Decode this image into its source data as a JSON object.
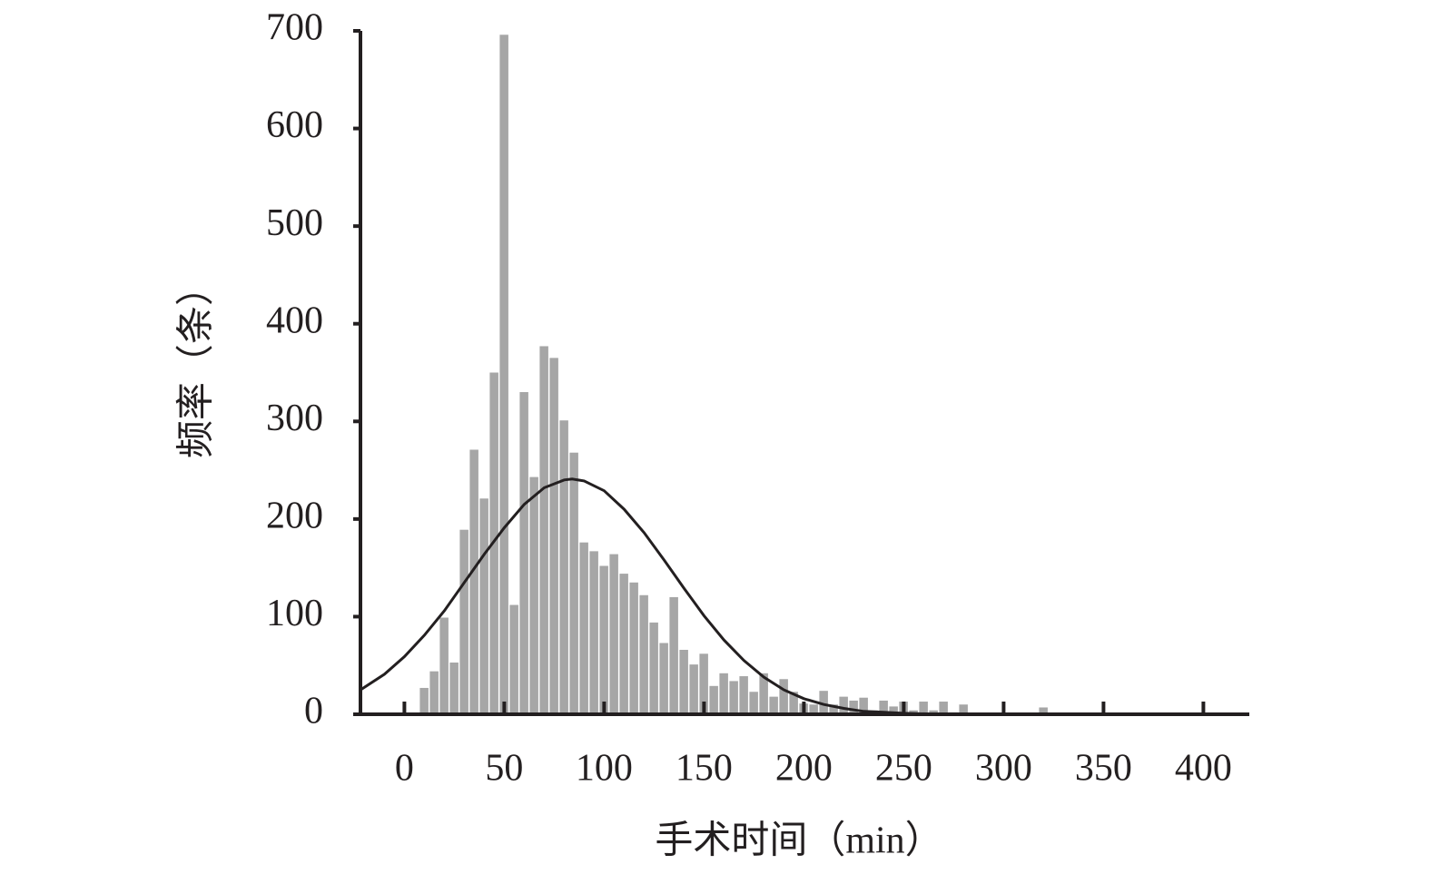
{
  "chart_data": {
    "type": "histogram",
    "xlabel": "手术时间（min）",
    "ylabel": "频率（条）",
    "bins": [
      7.5,
      12.5,
      17.5,
      22.5,
      27.5,
      32.5,
      37.5,
      42.5,
      47.5,
      52.5,
      57.5,
      62.5,
      67.5,
      72.5,
      77.5,
      82.5,
      87.5,
      92.5,
      97.5,
      102.5,
      107.5,
      112.5,
      117.5,
      122.5,
      127.5,
      132.5,
      137.5,
      142.5,
      147.5,
      152.5,
      157.5,
      162.5,
      167.5,
      172.5,
      177.5,
      182.5,
      187.5,
      192.5,
      197.5,
      202.5,
      207.5,
      212.5,
      217.5,
      222.5,
      227.5,
      232.5,
      237.5,
      242.5,
      247.5,
      252.5,
      257.5,
      262.5,
      267.5,
      272.5,
      277.5,
      282.5,
      287.5,
      292.5,
      297.5,
      302.5,
      307.5,
      312.5,
      317.5,
      322.5
    ],
    "counts": [
      27,
      44,
      99,
      53,
      189,
      271,
      221,
      350,
      696,
      112,
      330,
      243,
      377,
      365,
      301,
      268,
      176,
      167,
      152,
      164,
      144,
      135,
      122,
      94,
      73,
      120,
      66,
      51,
      62,
      29,
      42,
      34,
      39,
      23,
      42,
      18,
      36,
      23,
      11,
      10,
      24,
      10,
      18,
      14,
      17,
      4,
      14,
      8,
      13,
      4,
      13,
      4,
      13,
      2,
      10,
      0,
      0,
      0,
      0,
      0,
      0,
      0,
      7
    ],
    "color": "#a6a6a6",
    "curve": {
      "color": "#231f20",
      "x": [
        -22,
        -10,
        0,
        10,
        20,
        30,
        40,
        50,
        60,
        70,
        80,
        84,
        90,
        100,
        110,
        120,
        130,
        140,
        150,
        160,
        170,
        180,
        190,
        200,
        210,
        220,
        230,
        240,
        250,
        270
      ],
      "values": [
        25,
        41,
        59,
        81,
        106,
        135,
        164,
        191,
        215,
        232,
        240,
        241,
        239,
        229,
        210,
        186,
        158,
        129,
        101,
        76,
        55,
        38,
        25,
        16,
        10,
        6,
        3,
        2,
        1,
        0
      ]
    },
    "xlim": [
      -22,
      423
    ],
    "ylim": [
      0,
      700
    ],
    "xticks": [
      0,
      50,
      100,
      150,
      200,
      250,
      300,
      350,
      400
    ],
    "yticks": [
      0,
      100,
      200,
      300,
      400,
      500,
      600,
      700
    ]
  }
}
